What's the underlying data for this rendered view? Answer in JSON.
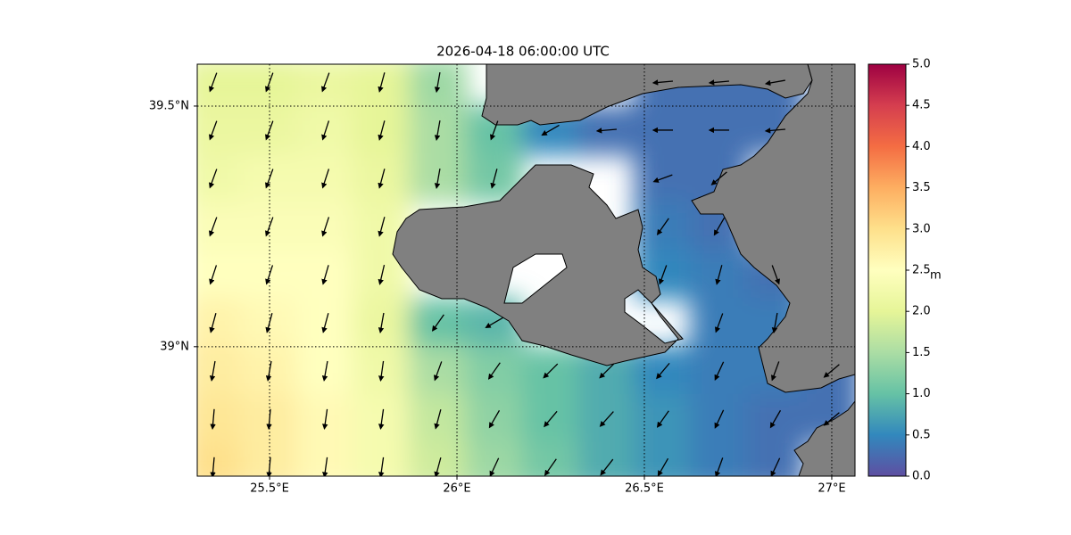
{
  "chart_data": {
    "type": "wave-map",
    "title": "2026-04-18 06:00:00 UTC",
    "colorbar_label": "m",
    "xlim": [
      25.307,
      27.062
    ],
    "ylim": [
      38.731,
      39.587
    ],
    "xticks": [
      {
        "value": 25.5,
        "label": "25.5°E"
      },
      {
        "value": 26,
        "label": "26°E"
      },
      {
        "value": 26.5,
        "label": "26.5°E"
      },
      {
        "value": 27,
        "label": "27°E"
      }
    ],
    "yticks": [
      {
        "value": 39,
        "label": "39°N"
      },
      {
        "value": 39.5,
        "label": "39.5°N"
      }
    ],
    "grid": true,
    "clim": [
      0,
      5
    ],
    "cticks": [
      {
        "value": 0,
        "label": "0.0"
      },
      {
        "value": 0.5,
        "label": "0.5"
      },
      {
        "value": 1,
        "label": "1.0"
      },
      {
        "value": 1.5,
        "label": "1.5"
      },
      {
        "value": 2,
        "label": "2.0"
      },
      {
        "value": 2.5,
        "label": "2.5"
      },
      {
        "value": 3,
        "label": "3.0"
      },
      {
        "value": 3.5,
        "label": "3.5"
      },
      {
        "value": 4,
        "label": "4.0"
      },
      {
        "value": 4.5,
        "label": "4.5"
      },
      {
        "value": 5,
        "label": "5.0"
      }
    ],
    "colors": [
      "#5e4fa2",
      "#3288bd",
      "#66c2a5",
      "#abdda4",
      "#e6f598",
      "#ffffbf",
      "#fee08b",
      "#fdae61",
      "#f46d43",
      "#d53e4f",
      "#9e0142"
    ],
    "x": [
      25.35,
      25.5,
      25.65,
      25.8,
      25.95,
      26.1,
      26.25,
      26.4,
      26.55,
      26.7,
      26.85,
      27.0
    ],
    "y": [
      39.55,
      39.45,
      39.35,
      39.25,
      39.15,
      39.05,
      38.95,
      38.85,
      38.75
    ],
    "values": [
      [
        2.0,
        2.0,
        2.1,
        2.0,
        1.4,
        null,
        null,
        null,
        0.3,
        0.3,
        0.3,
        null
      ],
      [
        2.1,
        2.1,
        2.2,
        2.0,
        1.5,
        1.0,
        0.5,
        0.3,
        0.3,
        0.3,
        0.3,
        null
      ],
      [
        2.2,
        2.3,
        2.3,
        2.1,
        1.5,
        1.1,
        null,
        null,
        0.3,
        0.3,
        null,
        null
      ],
      [
        2.4,
        2.4,
        2.4,
        2.2,
        null,
        null,
        null,
        null,
        0.4,
        0.3,
        null,
        null
      ],
      [
        2.5,
        2.5,
        2.5,
        2.2,
        null,
        null,
        null,
        null,
        0.5,
        0.4,
        0.3,
        null
      ],
      [
        2.7,
        2.6,
        2.5,
        2.1,
        1.0,
        0.9,
        null,
        null,
        null,
        0.4,
        0.4,
        null
      ],
      [
        2.8,
        2.7,
        2.5,
        2.2,
        1.5,
        1.2,
        1.0,
        0.8,
        0.5,
        0.4,
        0.4,
        0.3
      ],
      [
        2.9,
        2.8,
        2.6,
        2.3,
        1.7,
        1.3,
        1.0,
        0.8,
        0.6,
        0.4,
        0.3,
        0.3
      ],
      [
        3.0,
        2.8,
        2.6,
        2.3,
        1.8,
        1.4,
        1.1,
        0.8,
        0.6,
        0.4,
        0.3,
        null
      ]
    ],
    "direction": [
      [
        200,
        200,
        200,
        195,
        190,
        null,
        null,
        null,
        265,
        265,
        260,
        null
      ],
      [
        200,
        200,
        198,
        195,
        190,
        200,
        240,
        265,
        270,
        270,
        265,
        null
      ],
      [
        200,
        200,
        198,
        195,
        190,
        195,
        null,
        null,
        250,
        230,
        null,
        null
      ],
      [
        200,
        200,
        198,
        195,
        null,
        null,
        null,
        null,
        215,
        210,
        null,
        null
      ],
      [
        198,
        198,
        196,
        193,
        null,
        null,
        null,
        null,
        200,
        195,
        160,
        null
      ],
      [
        195,
        195,
        195,
        190,
        215,
        240,
        null,
        null,
        null,
        200,
        190,
        null
      ],
      [
        190,
        190,
        190,
        188,
        200,
        215,
        225,
        225,
        220,
        205,
        200,
        230
      ],
      [
        185,
        185,
        188,
        188,
        195,
        210,
        220,
        222,
        215,
        205,
        210,
        230
      ],
      [
        185,
        185,
        188,
        188,
        195,
        205,
        215,
        218,
        210,
        200,
        205,
        null
      ]
    ]
  }
}
